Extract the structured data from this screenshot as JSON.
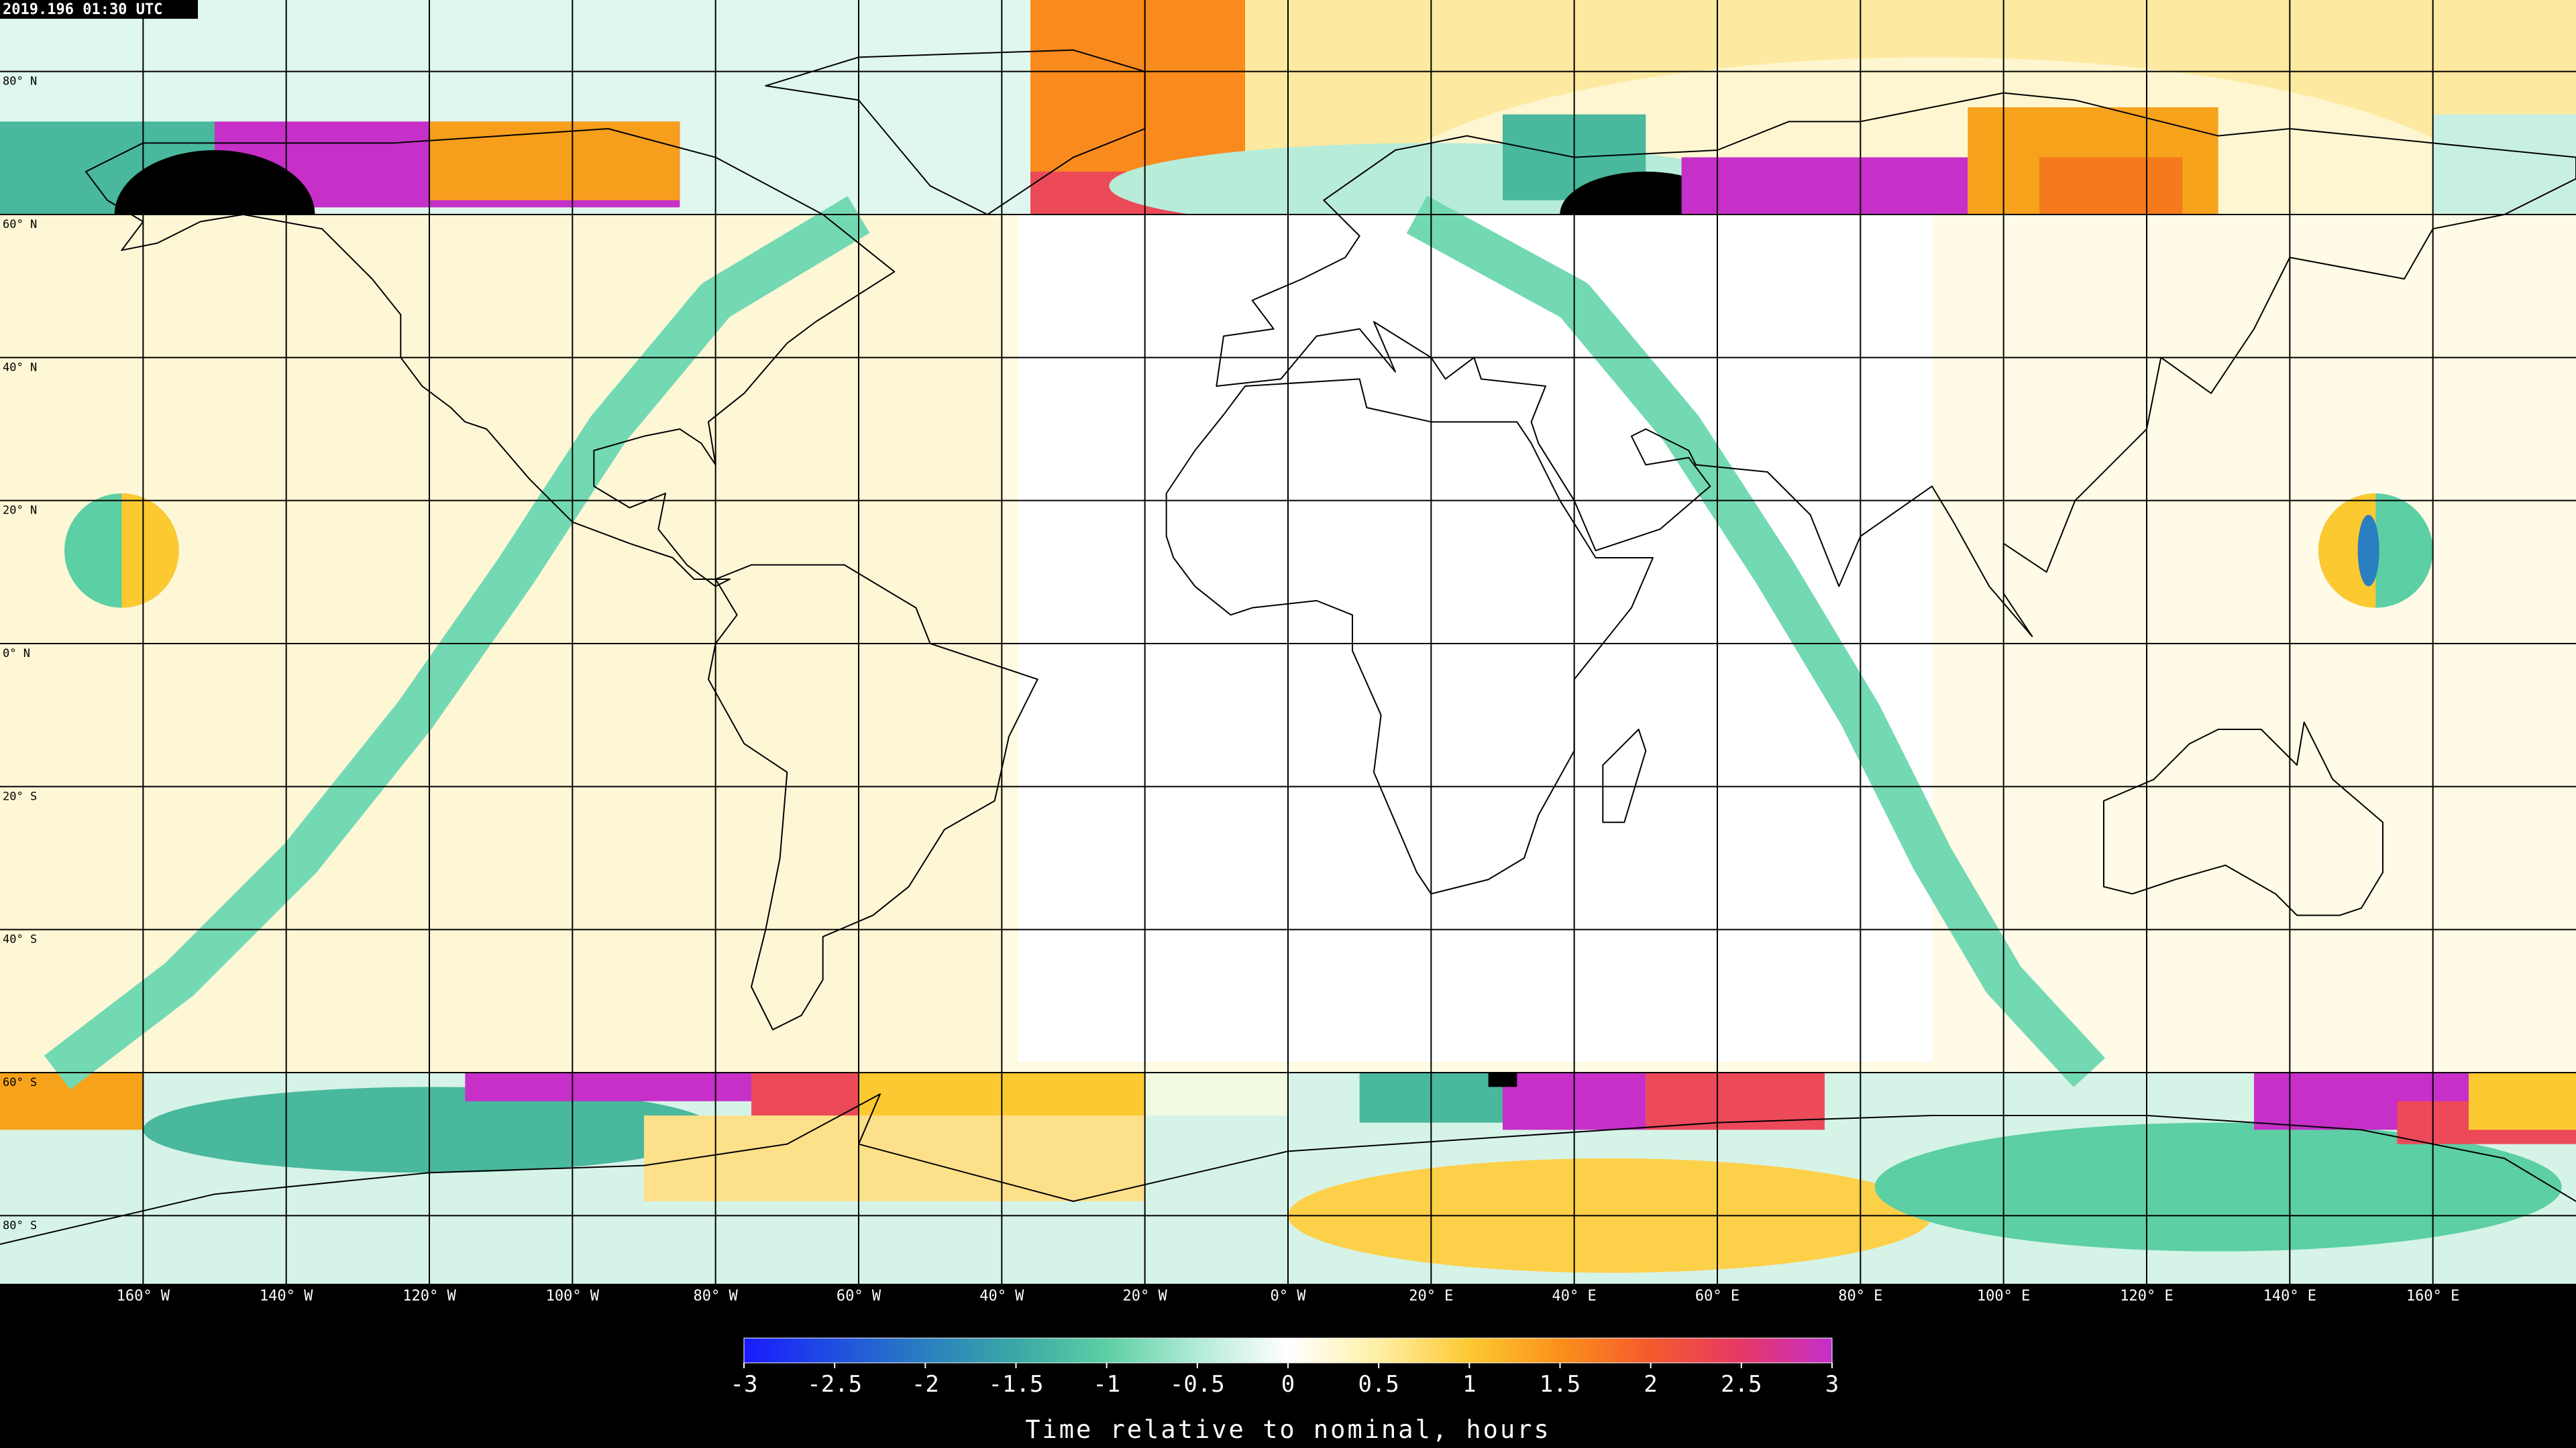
{
  "header": {
    "timestamp": "2019.196 01:30 UTC"
  },
  "map": {
    "lat_labels": [
      "80° N",
      "60° N",
      "40° N",
      "20° N",
      "0° N",
      "20° S",
      "40° S",
      "60° S",
      "80° S"
    ],
    "lon_labels": [
      "160° W",
      "140° W",
      "120° W",
      "100° W",
      "80° W",
      "60° W",
      "40° W",
      "20° W",
      "0° W",
      "20° E",
      "40° E",
      "60° E",
      "80° E",
      "100° E",
      "120° E",
      "140° E",
      "160° E"
    ]
  },
  "colorbar": {
    "range": [
      -3,
      3
    ],
    "ticks": [
      -3,
      -2.5,
      -2,
      -1.5,
      -1,
      -0.5,
      0,
      0.5,
      1,
      1.5,
      2,
      2.5,
      3
    ],
    "label": "Time relative to nominal, hours"
  }
}
